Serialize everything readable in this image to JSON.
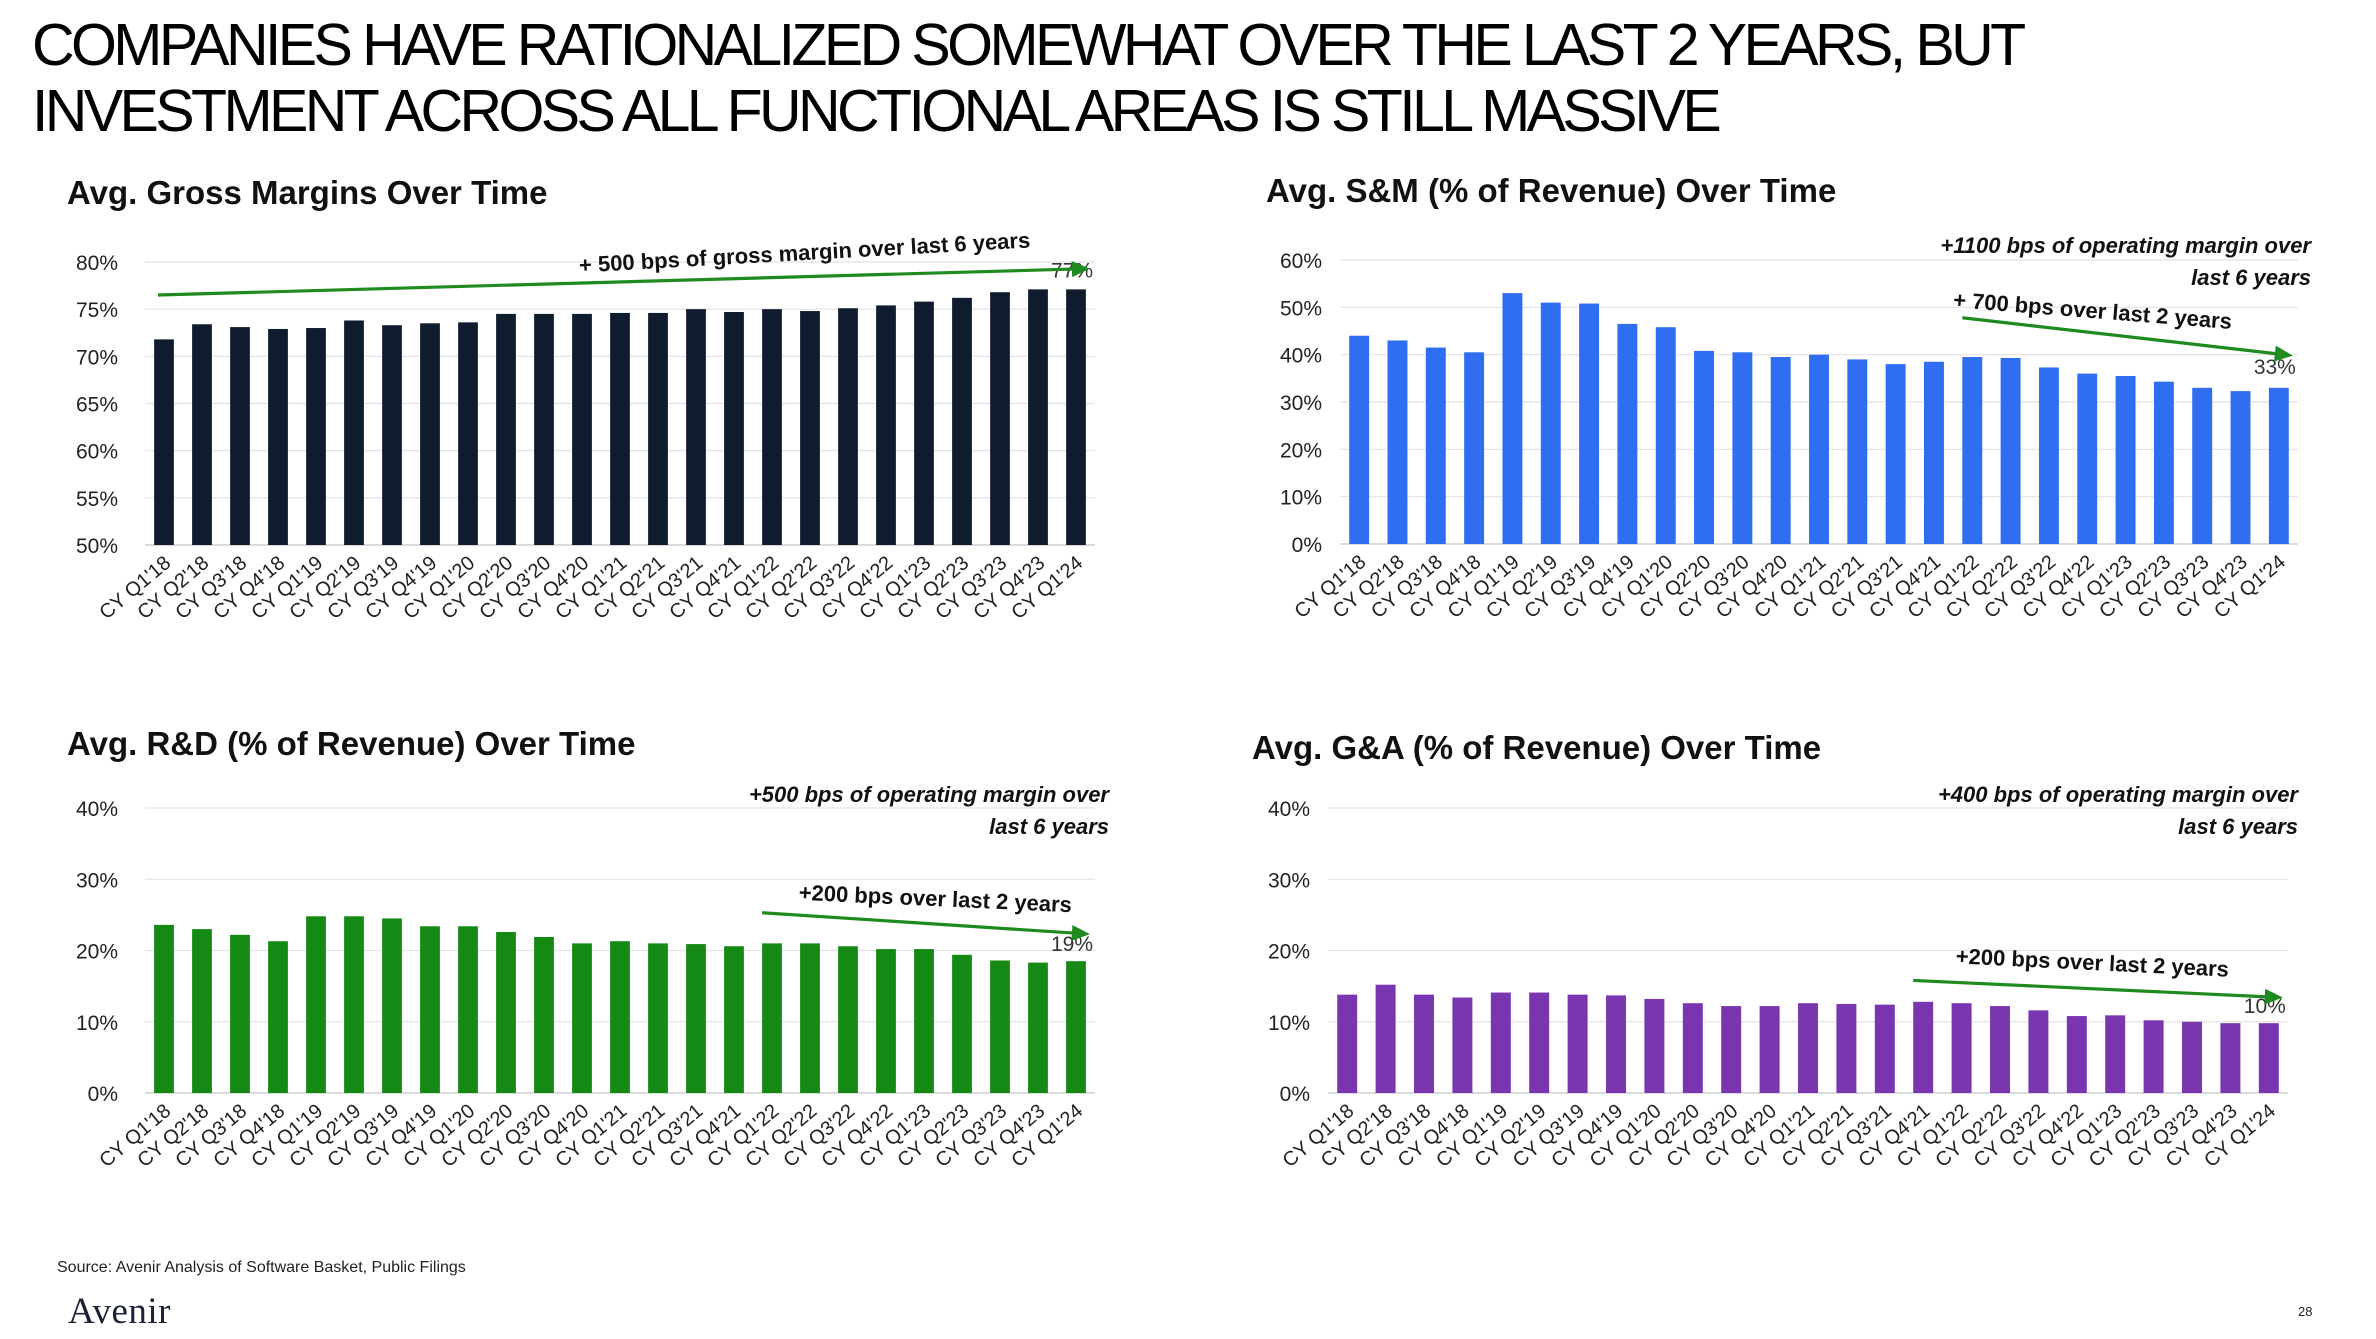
{
  "slide": {
    "title_line1": "COMPANIES HAVE RATIONALIZED SOMEWHAT OVER THE LAST 2 YEARS, BUT",
    "title_line2": "INVESTMENT ACROSS ALL FUNCTIONAL AREAS IS STILL MASSIVE",
    "source": "Source: Avenir Analysis of Software Basket, Public Filings",
    "logo": "Avenir",
    "page_number": "28"
  },
  "chart_data": [
    {
      "id": "gross-margins",
      "type": "bar",
      "title": "Avg. Gross Margins Over Time",
      "color": "#0f1c2e",
      "categories": [
        "CY Q1'18",
        "CY Q2'18",
        "CY Q3'18",
        "CY Q4'18",
        "CY Q1'19",
        "CY Q2'19",
        "CY Q3'19",
        "CY Q4'19",
        "CY Q1'20",
        "CY Q2'20",
        "CY Q3'20",
        "CY Q4'20",
        "CY Q1'21",
        "CY Q2'21",
        "CY Q3'21",
        "CY Q4'21",
        "CY Q1'22",
        "CY Q2'22",
        "CY Q3'22",
        "CY Q4'22",
        "CY Q1'23",
        "CY Q2'23",
        "CY Q3'23",
        "CY Q4'23",
        "CY Q1'24"
      ],
      "values": [
        71.8,
        73.4,
        73.1,
        72.9,
        73.0,
        73.8,
        73.3,
        73.5,
        73.6,
        74.5,
        74.5,
        74.5,
        74.6,
        74.6,
        75.0,
        74.7,
        75.0,
        74.8,
        75.1,
        75.4,
        75.8,
        76.2,
        76.8,
        77.1,
        77.1
      ],
      "ylim": [
        50,
        80
      ],
      "yticks": [
        50,
        55,
        60,
        65,
        70,
        75,
        80
      ],
      "ytick_labels": [
        "50%",
        "55%",
        "60%",
        "65%",
        "70%",
        "75%",
        "80%"
      ],
      "last_label": "77%",
      "annotations": [
        "+ 500 bps of gross margin over last 6 years"
      ],
      "arrow": {
        "from_index": 0,
        "to_index": 24,
        "y_start": 76.5,
        "y_end": 79.3
      }
    },
    {
      "id": "sales-marketing",
      "type": "bar",
      "title": "Avg. S&M (% of Revenue) Over Time",
      "color": "#2f6ef0",
      "categories": [
        "CY Q1'18",
        "CY Q2'18",
        "CY Q3'18",
        "CY Q4'18",
        "CY Q1'19",
        "CY Q2'19",
        "CY Q3'19",
        "CY Q4'19",
        "CY Q1'20",
        "CY Q2'20",
        "CY Q3'20",
        "CY Q4'20",
        "CY Q1'21",
        "CY Q2'21",
        "CY Q3'21",
        "CY Q4'21",
        "CY Q1'22",
        "CY Q2'22",
        "CY Q3'22",
        "CY Q4'22",
        "CY Q1'23",
        "CY Q2'23",
        "CY Q3'23",
        "CY Q4'23",
        "CY Q1'24"
      ],
      "values": [
        44.0,
        43.0,
        41.5,
        40.5,
        53.0,
        51.0,
        50.8,
        46.5,
        45.8,
        40.8,
        40.5,
        39.5,
        40.0,
        39.0,
        38.0,
        38.5,
        39.5,
        39.3,
        37.3,
        36.0,
        35.5,
        34.3,
        33.0,
        32.3,
        33.0
      ],
      "ylim": [
        0,
        60
      ],
      "yticks": [
        0,
        10,
        20,
        30,
        40,
        50,
        60
      ],
      "ytick_labels": [
        "0%",
        "10%",
        "20%",
        "30%",
        "40%",
        "50%",
        "60%"
      ],
      "last_label": "33%",
      "annotations": [
        "+1100 bps of operating margin over",
        "last 6 years",
        "+ 700 bps over last 2 years"
      ],
      "arrow": {
        "from_index": 16,
        "to_index": 24,
        "y_start": 47.8,
        "y_end": 39.8
      }
    },
    {
      "id": "research-development",
      "type": "bar",
      "title": "Avg. R&D (% of Revenue) Over Time",
      "color": "#148a14",
      "categories": [
        "CY Q1'18",
        "CY Q2'18",
        "CY Q3'18",
        "CY Q4'18",
        "CY Q1'19",
        "CY Q2'19",
        "CY Q3'19",
        "CY Q4'19",
        "CY Q1'20",
        "CY Q2'20",
        "CY Q3'20",
        "CY Q4'20",
        "CY Q1'21",
        "CY Q2'21",
        "CY Q3'21",
        "CY Q4'21",
        "CY Q1'22",
        "CY Q2'22",
        "CY Q3'22",
        "CY Q4'22",
        "CY Q1'23",
        "CY Q2'23",
        "CY Q3'23",
        "CY Q4'23",
        "CY Q1'24"
      ],
      "values": [
        23.6,
        23.0,
        22.2,
        21.3,
        24.8,
        24.8,
        24.5,
        23.4,
        23.4,
        22.6,
        21.9,
        21.0,
        21.3,
        21.0,
        20.9,
        20.6,
        21.0,
        21.0,
        20.6,
        20.2,
        20.2,
        19.4,
        18.6,
        18.3,
        18.5
      ],
      "ylim": [
        0,
        40
      ],
      "yticks": [
        0,
        10,
        20,
        30,
        40
      ],
      "ytick_labels": [
        "0%",
        "10%",
        "20%",
        "30%",
        "40%"
      ],
      "last_label": "19%",
      "annotations": [
        "+500 bps of operating margin over",
        "last 6 years",
        "+200 bps over last 2 years"
      ],
      "arrow": {
        "from_index": 16,
        "to_index": 24,
        "y_start": 25.3,
        "y_end": 22.3
      }
    },
    {
      "id": "general-admin",
      "type": "bar",
      "title": "Avg. G&A (% of Revenue) Over Time",
      "color": "#7a35b0",
      "categories": [
        "CY Q1'18",
        "CY Q2'18",
        "CY Q3'18",
        "CY Q4'18",
        "CY Q1'19",
        "CY Q2'19",
        "CY Q3'19",
        "CY Q4'19",
        "CY Q1'20",
        "CY Q2'20",
        "CY Q3'20",
        "CY Q4'20",
        "CY Q1'21",
        "CY Q2'21",
        "CY Q3'21",
        "CY Q4'21",
        "CY Q1'22",
        "CY Q2'22",
        "CY Q3'22",
        "CY Q4'22",
        "CY Q1'23",
        "CY Q2'23",
        "CY Q3'23",
        "CY Q4'23",
        "CY Q1'24"
      ],
      "values": [
        13.8,
        15.2,
        13.8,
        13.4,
        14.1,
        14.1,
        13.8,
        13.7,
        13.2,
        12.6,
        12.2,
        12.2,
        12.6,
        12.5,
        12.4,
        12.8,
        12.6,
        12.2,
        11.6,
        10.8,
        10.9,
        10.2,
        10.0,
        9.8,
        9.8
      ],
      "ylim": [
        0,
        40
      ],
      "yticks": [
        0,
        10,
        20,
        30,
        40
      ],
      "ytick_labels": [
        "0%",
        "10%",
        "20%",
        "30%",
        "40%"
      ],
      "last_label": "10%",
      "annotations": [
        "+400 bps of operating margin over",
        "last 6 years",
        "+200 bps over last 2 years"
      ],
      "arrow": {
        "from_index": 15,
        "to_index": 24,
        "y_start": 15.8,
        "y_end": 13.4
      }
    }
  ]
}
